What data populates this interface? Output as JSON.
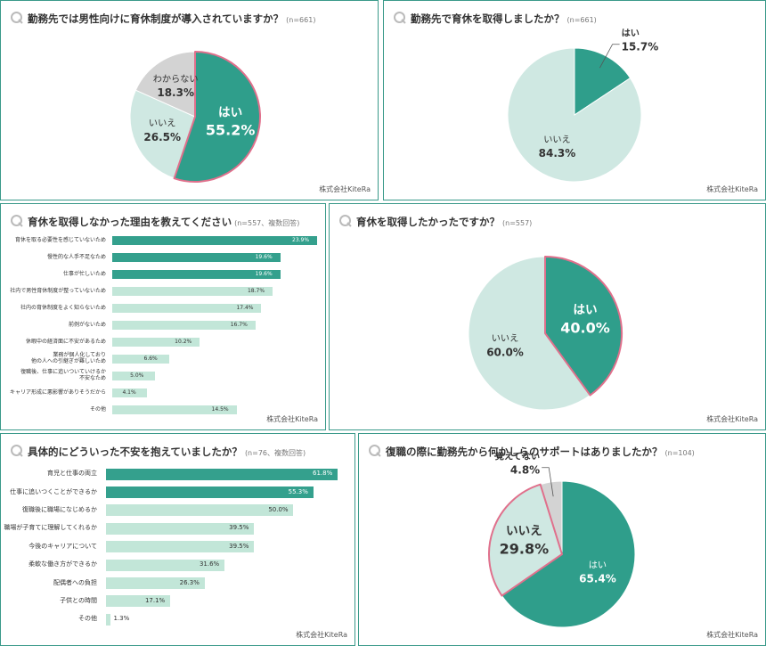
{
  "chart_data": [
    {
      "type": "pie",
      "title": "勤務先では男性向けに育休制度が導入されていますか？",
      "note": "(n=661)",
      "source": "株式会社KiteRa",
      "categories": [
        "はい",
        "いいえ",
        "わからない"
      ],
      "values": [
        55.2,
        26.5,
        18.3
      ],
      "value_labels": [
        "55.2%",
        "26.5%",
        "18.3%"
      ],
      "colors": [
        "#2f9e8b",
        "#cfe8e2",
        "#d3d3d3"
      ],
      "highlight": 0,
      "highlight_color": "#e0708c"
    },
    {
      "type": "pie",
      "title": "勤務先で育休を取得しましたか？",
      "note": "(n=661)",
      "source": "株式会社KiteRa",
      "categories": [
        "はい",
        "いいえ"
      ],
      "values": [
        15.7,
        84.3
      ],
      "value_labels": [
        "15.7%",
        "84.3%"
      ],
      "colors": [
        "#2f9e8b",
        "#cfe8e2"
      ]
    },
    {
      "type": "bar",
      "title": "育休を取得しなかった理由を教えてください",
      "note": "(n=557、複数回答)",
      "source": "株式会社KiteRa",
      "categories": [
        "育休を取る必要性を感じていないため",
        "慢性的な人手不足なため",
        "仕事が忙しいため",
        "社内で男性育休制度が整っていないため",
        "社内の育休制度をよく知らないため",
        "前例がないため",
        "休暇中の経済面に不安があるため",
        "業務が個人化しており\n他の人への引継ぎが難しいため",
        "復職後、仕事に追いついていけるか\n不安なため",
        "キャリア形成に悪影響がありそうだから",
        "その他"
      ],
      "values": [
        23.9,
        19.6,
        19.6,
        18.7,
        17.4,
        16.7,
        10.2,
        6.6,
        5.0,
        4.1,
        14.5
      ],
      "value_labels": [
        "23.9%",
        "19.6%",
        "19.6%",
        "18.7%",
        "17.4%",
        "16.7%",
        "10.2%",
        "6.6%",
        "5.0%",
        "4.1%",
        "14.5%"
      ],
      "colors": [
        "#34a08d",
        "#34a08d",
        "#34a08d",
        "#c2e6d8",
        "#c2e6d8",
        "#c2e6d8",
        "#c2e6d8",
        "#c2e6d8",
        "#c2e6d8",
        "#c2e6d8",
        "#c2e6d8"
      ]
    },
    {
      "type": "pie",
      "title": "育休を取得したかったですか？",
      "note": "(n=557)",
      "source": "株式会社KiteRa",
      "categories": [
        "はい",
        "いいえ"
      ],
      "values": [
        40.0,
        60.0
      ],
      "value_labels": [
        "40.0%",
        "60.0%"
      ],
      "colors": [
        "#2f9e8b",
        "#cfe8e2"
      ],
      "highlight": 0,
      "highlight_color": "#e0708c"
    },
    {
      "type": "bar",
      "title": "具体的にどういった不安を抱えていましたか？",
      "note": "(n=76、複数回答)",
      "source": "株式会社KiteRa",
      "categories": [
        "育児と仕事の両立",
        "仕事に追いつくことができるか",
        "復職後に職場になじめるか",
        "職場が子育てに理解してくれるか",
        "今後のキャリアについて",
        "柔軟な働き方ができるか",
        "配偶者への負担",
        "子供との時間",
        "その他"
      ],
      "values": [
        61.8,
        55.3,
        50.0,
        39.5,
        39.5,
        31.6,
        26.3,
        17.1,
        1.3
      ],
      "value_labels": [
        "61.8%",
        "55.3%",
        "50.0%",
        "39.5%",
        "39.5%",
        "31.6%",
        "26.3%",
        "17.1%",
        "1.3%"
      ],
      "colors": [
        "#34a08d",
        "#34a08d",
        "#c2e6d8",
        "#c2e6d8",
        "#c2e6d8",
        "#c2e6d8",
        "#c2e6d8",
        "#c2e6d8",
        "#c2e6d8"
      ]
    },
    {
      "type": "pie",
      "title": "復職の際に勤務先から何かしらのサポートはありましたか？",
      "note": "(n=104)",
      "source": "株式会社KiteRa",
      "categories": [
        "はい",
        "いいえ",
        "覚えてない"
      ],
      "values": [
        65.4,
        29.8,
        4.8
      ],
      "value_labels": [
        "65.4%",
        "29.8%",
        "4.8%"
      ],
      "colors": [
        "#2f9e8b",
        "#cfe8e2",
        "#d3d3d3"
      ],
      "highlight": 1,
      "highlight_color": "#e0708c"
    }
  ]
}
